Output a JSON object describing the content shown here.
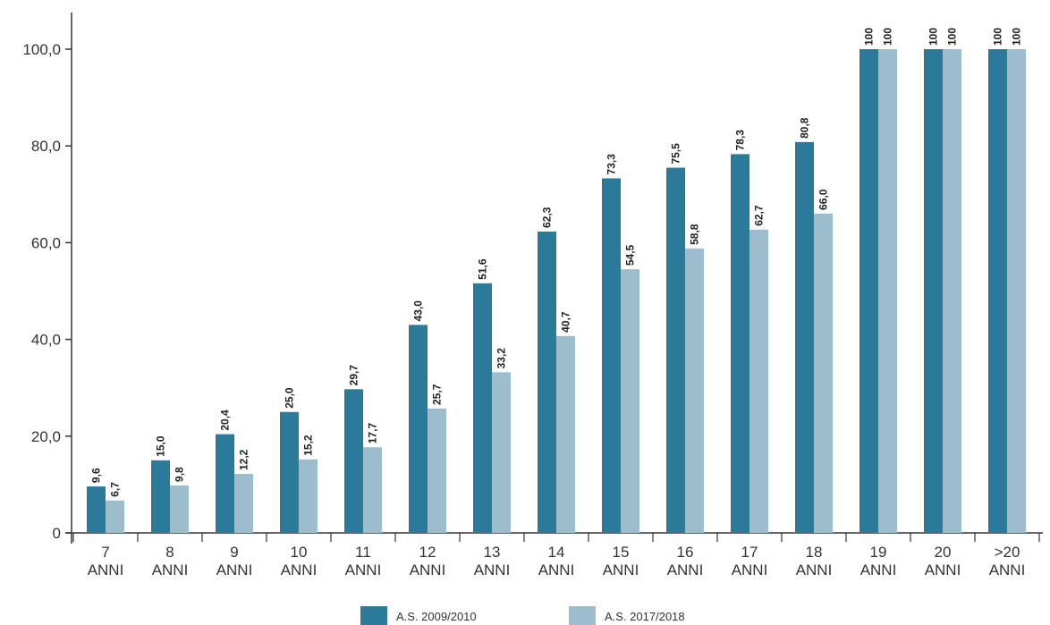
{
  "chart_data": {
    "type": "bar",
    "title": "",
    "xlabel": "",
    "ylabel": "",
    "ylim": [
      0,
      110
    ],
    "y_ticks": [
      0,
      20,
      40,
      60,
      80,
      100
    ],
    "y_tick_labels": [
      "0",
      "20,0",
      "40,0",
      "60,0",
      "80,0",
      "100,0"
    ],
    "grid": false,
    "legend_position": "bottom",
    "categories": [
      [
        "7",
        "ANNI"
      ],
      [
        "8",
        "ANNI"
      ],
      [
        "9",
        "ANNI"
      ],
      [
        "10",
        "ANNI"
      ],
      [
        "11",
        "ANNI"
      ],
      [
        "12",
        "ANNI"
      ],
      [
        "13",
        "ANNI"
      ],
      [
        "14",
        "ANNI"
      ],
      [
        "15",
        "ANNI"
      ],
      [
        "16",
        "ANNI"
      ],
      [
        "17",
        "ANNI"
      ],
      [
        "18",
        "ANNI"
      ],
      [
        "19",
        "ANNI"
      ],
      [
        "20",
        "ANNI"
      ],
      [
        ">20",
        "ANNI"
      ]
    ],
    "series": [
      {
        "name": "A.S. 2009/2010",
        "color": "#2b7a99",
        "values": [
          9.6,
          15.0,
          20.4,
          25.0,
          29.7,
          43.0,
          51.6,
          62.3,
          73.3,
          75.5,
          78.3,
          80.8,
          100,
          100,
          100
        ],
        "labels": [
          "9,6",
          "15,0",
          "20,4",
          "25,0",
          "29,7",
          "43,0",
          "51,6",
          "62,3",
          "73,3",
          "75,5",
          "78,3",
          "80,8",
          "100",
          "100",
          "100"
        ]
      },
      {
        "name": "A.S. 2017/2018",
        "color": "#9dbccc",
        "values": [
          6.7,
          9.8,
          12.2,
          15.2,
          17.7,
          25.7,
          33.2,
          40.7,
          54.5,
          58.8,
          62.7,
          66.0,
          100,
          100,
          100
        ],
        "labels": [
          "6,7",
          "9,8",
          "12,2",
          "15,2",
          "17,7",
          "25,7",
          "33,2",
          "40,7",
          "54,5",
          "58,8",
          "62,7",
          "66,0",
          "100",
          "100",
          "100"
        ]
      }
    ]
  }
}
